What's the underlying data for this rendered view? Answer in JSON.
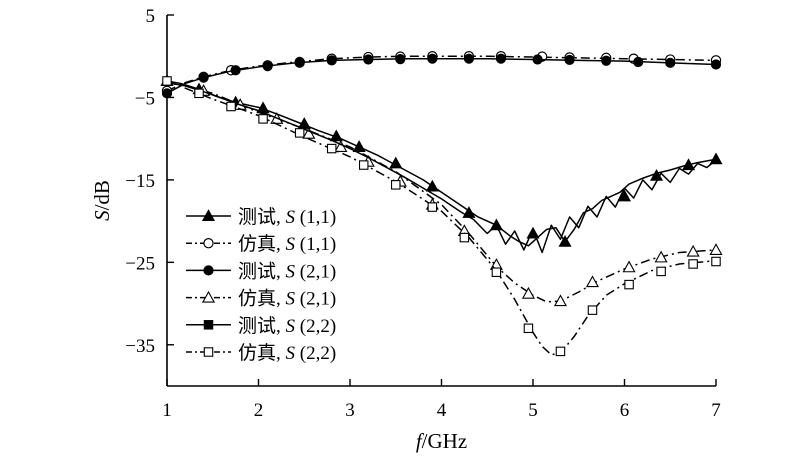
{
  "chart_data": {
    "type": "line",
    "xlabel": "f/GHz",
    "ylabel": "S/dB",
    "xlim": [
      1,
      7
    ],
    "ylim": [
      -40,
      5
    ],
    "x_ticks": [
      1,
      2,
      3,
      4,
      5,
      6,
      7
    ],
    "y_ticks": [
      5,
      -5,
      -15,
      -25,
      -35
    ],
    "x_tick_labels": [
      "1",
      "2",
      "3",
      "4",
      "5",
      "6",
      "7"
    ],
    "y_tick_labels": [
      "5",
      "−5",
      "−15",
      "−25",
      "−35"
    ],
    "grid": false,
    "legend_position": "lower-left",
    "series": [
      {
        "name": "测试, S (1,1)",
        "name_prefix": "测试, ",
        "name_symbol": "S",
        "name_suffix": " (1,1)",
        "color": "#000000",
        "line": "solid",
        "marker": "filled-triangle",
        "x": [
          1.0,
          1.15,
          1.35,
          1.55,
          1.75,
          2.0,
          2.2,
          2.45,
          2.65,
          2.9,
          3.1,
          3.3,
          3.55,
          3.8,
          4.0,
          4.2,
          4.4,
          4.6,
          4.75,
          4.85,
          4.95,
          5.05,
          5.15,
          5.25,
          5.35,
          5.45,
          5.55,
          5.65,
          5.75,
          5.85,
          5.95,
          6.05,
          6.2,
          6.35,
          6.5,
          6.65,
          6.8,
          7.0
        ],
        "y": [
          -3.0,
          -3.3,
          -4.0,
          -4.9,
          -5.6,
          -6.2,
          -7.0,
          -8.1,
          -9.0,
          -10.0,
          -11.0,
          -12.0,
          -13.5,
          -15.0,
          -16.5,
          -18.0,
          -19.5,
          -20.5,
          -21.8,
          -22.5,
          -23.0,
          -22.0,
          -21.0,
          -20.8,
          -22.5,
          -21.0,
          -19.0,
          -18.5,
          -17.5,
          -17.0,
          -16.5,
          -15.5,
          -14.8,
          -14.2,
          -13.8,
          -13.3,
          -12.9,
          -12.5
        ],
        "marker_x": [
          1.0,
          1.35,
          1.75,
          2.05,
          2.5,
          2.85,
          3.1,
          3.5,
          3.9,
          4.3,
          4.6,
          5.0,
          5.35,
          6.0,
          6.35,
          6.7,
          7.0
        ],
        "marker_y": [
          -3.0,
          -4.0,
          -5.6,
          -6.3,
          -8.2,
          -9.7,
          -11.0,
          -13.0,
          -15.8,
          -19.0,
          -20.5,
          -21.5,
          -22.5,
          -17.0,
          -14.5,
          -13.2,
          -12.5
        ]
      },
      {
        "name": "仿真, S (1,1)",
        "name_prefix": "仿真, ",
        "name_symbol": "S",
        "name_suffix": " (1,1)",
        "color": "#000000",
        "line": "dashdot",
        "marker": "open-circle",
        "x": [
          1.0,
          1.2,
          1.4,
          1.7,
          2.0,
          2.4,
          2.8,
          3.2,
          3.6,
          4.0,
          4.5,
          5.0,
          5.5,
          6.0,
          6.5,
          7.0
        ],
        "y": [
          -4.2,
          -3.2,
          -2.5,
          -1.7,
          -1.2,
          -0.7,
          -0.3,
          -0.1,
          0.0,
          0.0,
          0.0,
          -0.1,
          -0.2,
          -0.3,
          -0.4,
          -0.5
        ],
        "marker_x": [
          1.0,
          1.4,
          1.7,
          2.1,
          2.45,
          2.8,
          3.2,
          3.55,
          3.9,
          4.3,
          4.65,
          5.1,
          5.4,
          5.8,
          6.1,
          6.5,
          7.0
        ],
        "marker_y": [
          -4.2,
          -2.5,
          -1.7,
          -1.1,
          -0.7,
          -0.3,
          -0.1,
          -0.05,
          0.0,
          0.0,
          0.0,
          -0.05,
          -0.15,
          -0.2,
          -0.3,
          -0.4,
          -0.5
        ]
      },
      {
        "name": "测试, S (2,1)",
        "name_prefix": "测试, ",
        "name_symbol": "S",
        "name_suffix": " (2,1)",
        "color": "#000000",
        "line": "solid",
        "marker": "filled-circle",
        "x": [
          1.0,
          1.2,
          1.4,
          1.7,
          2.0,
          2.4,
          2.8,
          3.2,
          3.6,
          4.0,
          4.5,
          5.0,
          5.5,
          6.0,
          6.5,
          7.0
        ],
        "y": [
          -4.5,
          -3.3,
          -2.6,
          -1.8,
          -1.3,
          -0.8,
          -0.5,
          -0.4,
          -0.3,
          -0.3,
          -0.3,
          -0.4,
          -0.5,
          -0.6,
          -0.8,
          -1.0
        ],
        "marker_x": [
          1.0,
          1.4,
          1.75,
          2.1,
          2.45,
          2.8,
          3.2,
          3.55,
          3.9,
          4.3,
          4.65,
          5.05,
          5.4,
          5.8,
          6.15,
          6.5,
          7.0
        ],
        "marker_y": [
          -4.5,
          -2.6,
          -1.7,
          -1.2,
          -0.8,
          -0.5,
          -0.4,
          -0.35,
          -0.3,
          -0.3,
          -0.3,
          -0.4,
          -0.45,
          -0.55,
          -0.7,
          -0.8,
          -1.0
        ]
      },
      {
        "name": "仿真, S (2,1)",
        "name_prefix": "仿真, ",
        "name_symbol": "S",
        "name_suffix": " (2,1)",
        "color": "#000000",
        "line": "dashdot",
        "marker": "open-triangle",
        "x": [
          1.0,
          1.5,
          2.0,
          2.5,
          3.0,
          3.5,
          4.0,
          4.3,
          4.6,
          4.8,
          5.0,
          5.15,
          5.3,
          5.5,
          5.7,
          6.0,
          6.3,
          6.6,
          7.0
        ],
        "y": [
          -3.0,
          -4.5,
          -6.8,
          -8.8,
          -11.0,
          -14.0,
          -18.0,
          -21.5,
          -25.5,
          -27.5,
          -29.0,
          -29.8,
          -29.7,
          -28.6,
          -27.3,
          -25.8,
          -24.6,
          -23.8,
          -23.5
        ],
        "marker_x": [
          1.0,
          1.4,
          1.8,
          2.2,
          2.55,
          2.9,
          3.2,
          3.55,
          3.9,
          4.25,
          4.6,
          4.95,
          5.3,
          5.65,
          6.05,
          6.4,
          6.75,
          7.0
        ],
        "marker_y": [
          -3.0,
          -4.2,
          -5.9,
          -7.6,
          -9.4,
          -11.0,
          -12.8,
          -15.2,
          -18.0,
          -21.2,
          -25.3,
          -28.8,
          -29.7,
          -27.4,
          -25.6,
          -24.4,
          -23.7,
          -23.5
        ]
      },
      {
        "name": "测试, S (2,2)",
        "name_prefix": "测试, ",
        "name_symbol": "S",
        "name_suffix": " (2,2)",
        "color": "#000000",
        "line": "solid",
        "marker": "filled-square",
        "x": [
          1.0,
          1.2,
          1.4,
          1.6,
          1.8,
          2.0,
          2.2,
          2.4,
          2.6,
          2.8,
          3.0,
          3.2,
          3.4,
          3.6,
          3.8,
          4.0,
          4.2,
          4.35,
          4.5,
          4.6,
          4.7,
          4.8,
          4.9,
          5.0,
          5.1,
          5.2,
          5.3,
          5.4,
          5.5,
          5.6,
          5.7,
          5.8,
          5.9,
          6.0,
          6.1,
          6.2,
          6.3,
          6.4,
          6.5,
          6.6,
          6.7,
          6.8,
          6.9,
          7.0
        ],
        "y": [
          -3.2,
          -3.6,
          -4.3,
          -5.1,
          -5.9,
          -6.6,
          -7.5,
          -8.4,
          -9.3,
          -10.2,
          -11.2,
          -12.3,
          -13.5,
          -14.7,
          -16.0,
          -17.3,
          -18.8,
          -19.8,
          -21.5,
          -20.5,
          -22.8,
          -21.2,
          -23.5,
          -21.0,
          -23.8,
          -20.5,
          -22.2,
          -19.5,
          -20.8,
          -18.2,
          -19.5,
          -17.0,
          -18.3,
          -16.0,
          -17.2,
          -15.0,
          -16.2,
          -14.2,
          -15.3,
          -13.6,
          -14.3,
          -13.0,
          -13.5,
          -12.6
        ]
      },
      {
        "name": "仿真, S (2,2)",
        "name_prefix": "仿真, ",
        "name_symbol": "S",
        "name_suffix": " (2,2)",
        "color": "#000000",
        "line": "dashdot",
        "marker": "open-square",
        "x": [
          1.0,
          1.5,
          2.0,
          2.5,
          3.0,
          3.5,
          4.0,
          4.3,
          4.6,
          4.8,
          5.0,
          5.1,
          5.2,
          5.3,
          5.45,
          5.6,
          5.8,
          6.0,
          6.3,
          6.6,
          7.0
        ],
        "y": [
          -3.0,
          -5.2,
          -7.2,
          -9.8,
          -12.2,
          -15.2,
          -18.8,
          -22.0,
          -26.0,
          -29.5,
          -33.5,
          -35.2,
          -36.2,
          -36.0,
          -34.0,
          -31.5,
          -29.0,
          -27.6,
          -26.0,
          -25.2,
          -24.8
        ],
        "marker_x": [
          1.0,
          1.35,
          1.7,
          2.05,
          2.45,
          2.8,
          3.15,
          3.5,
          3.9,
          4.25,
          4.6,
          4.95,
          5.3,
          5.65,
          6.05,
          6.4,
          6.75,
          7.0
        ],
        "marker_y": [
          -3.0,
          -4.5,
          -6.1,
          -7.6,
          -9.3,
          -11.2,
          -13.2,
          -15.6,
          -18.3,
          -22.0,
          -26.2,
          -33.0,
          -35.8,
          -30.8,
          -27.7,
          -26.1,
          -25.2,
          -24.9
        ]
      }
    ]
  }
}
